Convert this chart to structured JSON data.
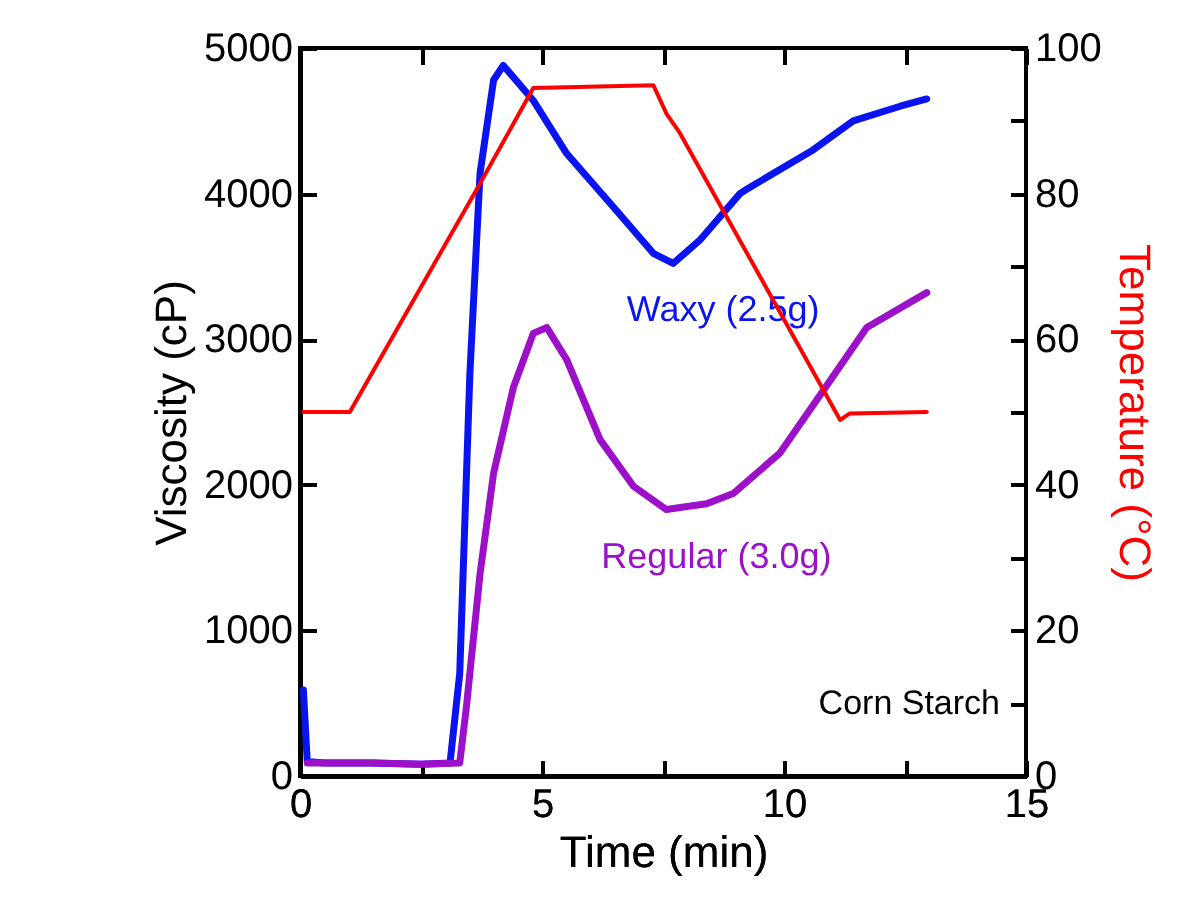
{
  "chart_data": {
    "type": "line",
    "xlabel": "Time (min)",
    "ylabel": "Viscosity (cP)",
    "y2label": "Temperature (°C)",
    "xlim": [
      0,
      15
    ],
    "xticks": [
      0,
      {
        "value": 2.5,
        "label": null
      },
      5,
      {
        "value": 7.5,
        "label": null
      },
      10,
      {
        "value": 12.5,
        "label": null
      },
      15
    ],
    "ylim": [
      0,
      5000
    ],
    "yticks": [
      0,
      {
        "value": 500,
        "label": null
      },
      1000,
      {
        "value": 1500,
        "label": null
      },
      2000,
      {
        "value": 2500,
        "label": null
      },
      3000,
      {
        "value": 3500,
        "label": null
      },
      4000,
      {
        "value": 4500,
        "label": null
      },
      5000
    ],
    "y2lim": [
      0,
      100
    ],
    "y2ticks": [
      0,
      {
        "value": 10,
        "label": null
      },
      20,
      {
        "value": 30,
        "label": null
      },
      40,
      {
        "value": 50,
        "label": null
      },
      60,
      {
        "value": 70,
        "label": null
      },
      80,
      {
        "value": 90,
        "label": null
      },
      100
    ],
    "grid": false,
    "marker": "none",
    "line_style": "solid",
    "annotations": [
      "Corn Starch"
    ],
    "series": [
      {
        "name": "Waxy (2.5g)",
        "color": "#0a14f0",
        "x": [
          0.07,
          0.15,
          0.5,
          1.5,
          2.5,
          3.1,
          3.3,
          3.51,
          3.72,
          4.0,
          4.2,
          4.82,
          5.51,
          6.47,
          7.3,
          7.71,
          8.26,
          9.09,
          9.23,
          10.6,
          11.43,
          12.4,
          12.95
        ],
        "values": [
          590,
          100,
          90,
          90,
          80,
          90,
          705,
          2765,
          4140,
          4780,
          4880,
          4640,
          4275,
          3910,
          3590,
          3520,
          3680,
          4000,
          4030,
          4300,
          4500,
          4600,
          4650
        ]
      },
      {
        "name": "Regular (3.0g)",
        "color": "#9b10c8",
        "x": [
          0.15,
          0.5,
          1.5,
          2.5,
          3.3,
          3.44,
          3.72,
          4.0,
          4.41,
          4.82,
          5.1,
          5.51,
          6.2,
          6.89,
          7.57,
          8.4,
          8.95,
          9.92,
          10.88,
          11.71,
          12.95
        ],
        "values": [
          90,
          90,
          90,
          80,
          90,
          480,
          1390,
          2080,
          2670,
          3040,
          3080,
          2860,
          2310,
          1990,
          1830,
          1870,
          1940,
          2220,
          2680,
          3080,
          3320
        ]
      },
      {
        "color": "#ff0000",
        "axis": "y2",
        "x": [
          0.07,
          1.03,
          3.72,
          4.82,
          7.3,
          7.57,
          7.85,
          11.16,
          11.36,
          12.95
        ],
        "values": [
          50,
          50,
          81.4,
          94.5,
          94.9,
          91,
          88.3,
          48.9,
          49.8,
          50
        ]
      }
    ]
  }
}
